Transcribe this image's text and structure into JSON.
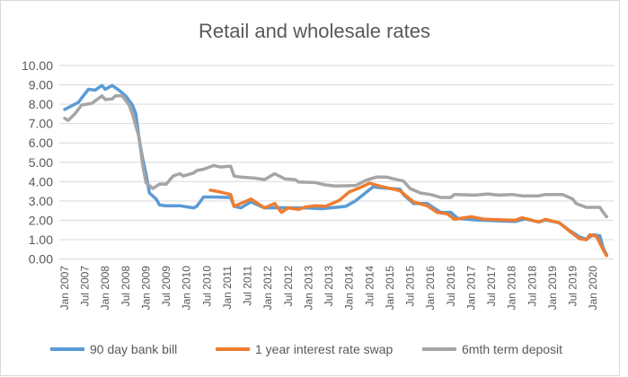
{
  "chart_data": {
    "type": "line",
    "title": "Retail and wholesale rates",
    "xlabel": "",
    "ylabel": "",
    "ylim": [
      0,
      10
    ],
    "y_ticks": [
      "0.00",
      "1.00",
      "2.00",
      "3.00",
      "4.00",
      "5.00",
      "6.00",
      "7.00",
      "8.00",
      "9.00",
      "10.00"
    ],
    "x_range": [
      "2007-01",
      "2020-05"
    ],
    "x_ticks": [
      "Jan 2007",
      "Jul 2007",
      "Jan 2008",
      "Jul 2008",
      "Jan 2009",
      "Jul 2009",
      "Jan 2010",
      "Jul 2010",
      "Jan 2011",
      "Jul 2011",
      "Jan 2012",
      "Jul 2012",
      "Jan 2013",
      "Jul 2013",
      "Jan 2014",
      "Jul 2014",
      "Jan 2015",
      "Jul 2015",
      "Jan 2016",
      "Jul 2016",
      "Jan 2017",
      "Jul 2017",
      "Jan 2018",
      "Jul 2018",
      "Jan 2019",
      "Jul 2019",
      "Jan 2020"
    ],
    "grid": true,
    "legend_position": "bottom",
    "series": [
      {
        "name": "90 day bank bill",
        "color": "#5b9bd5",
        "points": [
          [
            "2007-01",
            7.73
          ],
          [
            "2007-05",
            8.09
          ],
          [
            "2007-08",
            8.77
          ],
          [
            "2007-10",
            8.73
          ],
          [
            "2007-12",
            8.97
          ],
          [
            "2008-01",
            8.77
          ],
          [
            "2008-03",
            8.97
          ],
          [
            "2008-05",
            8.73
          ],
          [
            "2008-07",
            8.43
          ],
          [
            "2008-09",
            7.96
          ],
          [
            "2008-10",
            7.5
          ],
          [
            "2008-11",
            6.2
          ],
          [
            "2008-12",
            5.2
          ],
          [
            "2009-01",
            4.41
          ],
          [
            "2009-02",
            3.41
          ],
          [
            "2009-04",
            3.1
          ],
          [
            "2009-05",
            2.79
          ],
          [
            "2009-07",
            2.75
          ],
          [
            "2009-11",
            2.75
          ],
          [
            "2010-03",
            2.64
          ],
          [
            "2010-04",
            2.72
          ],
          [
            "2010-06",
            3.2
          ],
          [
            "2010-09",
            3.2
          ],
          [
            "2011-02",
            3.18
          ],
          [
            "2011-03",
            2.72
          ],
          [
            "2011-05",
            2.64
          ],
          [
            "2011-08",
            2.95
          ],
          [
            "2011-12",
            2.64
          ],
          [
            "2012-03",
            2.65
          ],
          [
            "2012-12",
            2.64
          ],
          [
            "2013-05",
            2.6
          ],
          [
            "2013-12",
            2.72
          ],
          [
            "2014-03",
            3.02
          ],
          [
            "2014-08",
            3.72
          ],
          [
            "2014-11",
            3.67
          ],
          [
            "2015-04",
            3.61
          ],
          [
            "2015-05",
            3.33
          ],
          [
            "2015-08",
            2.87
          ],
          [
            "2015-12",
            2.87
          ],
          [
            "2016-04",
            2.41
          ],
          [
            "2016-07",
            2.41
          ],
          [
            "2016-09",
            2.1
          ],
          [
            "2017-02",
            2.02
          ],
          [
            "2018-02",
            1.94
          ],
          [
            "2018-05",
            2.07
          ],
          [
            "2018-09",
            1.91
          ],
          [
            "2018-11",
            2.02
          ],
          [
            "2019-03",
            1.87
          ],
          [
            "2019-06",
            1.48
          ],
          [
            "2019-09",
            1.14
          ],
          [
            "2019-11",
            1.02
          ],
          [
            "2020-01",
            1.25
          ],
          [
            "2020-03",
            1.2
          ],
          [
            "2020-04",
            0.56
          ],
          [
            "2020-05",
            0.22
          ]
        ]
      },
      {
        "name": "1 year interest rate swap",
        "color": "#ed7d31",
        "points": [
          [
            "2010-08",
            3.56
          ],
          [
            "2010-11",
            3.46
          ],
          [
            "2011-02",
            3.33
          ],
          [
            "2011-03",
            2.72
          ],
          [
            "2011-05",
            2.87
          ],
          [
            "2011-08",
            3.1
          ],
          [
            "2011-10",
            2.87
          ],
          [
            "2011-12",
            2.64
          ],
          [
            "2012-03",
            2.87
          ],
          [
            "2012-05",
            2.41
          ],
          [
            "2012-07",
            2.64
          ],
          [
            "2012-10",
            2.56
          ],
          [
            "2012-12",
            2.68
          ],
          [
            "2013-03",
            2.75
          ],
          [
            "2013-06",
            2.72
          ],
          [
            "2013-10",
            3.02
          ],
          [
            "2014-01",
            3.46
          ],
          [
            "2014-04",
            3.67
          ],
          [
            "2014-07",
            3.92
          ],
          [
            "2014-10",
            3.77
          ],
          [
            "2015-02",
            3.61
          ],
          [
            "2015-04",
            3.52
          ],
          [
            "2015-08",
            2.95
          ],
          [
            "2015-12",
            2.75
          ],
          [
            "2016-03",
            2.41
          ],
          [
            "2016-06",
            2.33
          ],
          [
            "2016-08",
            2.05
          ],
          [
            "2017-01",
            2.18
          ],
          [
            "2017-05",
            2.05
          ],
          [
            "2018-02",
            2.0
          ],
          [
            "2018-04",
            2.13
          ],
          [
            "2018-09",
            1.91
          ],
          [
            "2018-11",
            2.05
          ],
          [
            "2019-03",
            1.87
          ],
          [
            "2019-06",
            1.45
          ],
          [
            "2019-09",
            1.05
          ],
          [
            "2019-11",
            0.99
          ],
          [
            "2019-12",
            1.25
          ],
          [
            "2020-02",
            1.17
          ],
          [
            "2020-04",
            0.48
          ],
          [
            "2020-05",
            0.17
          ]
        ]
      },
      {
        "name": "6mth term deposit",
        "color": "#a5a5a5",
        "points": [
          [
            "2007-01",
            7.27
          ],
          [
            "2007-02",
            7.16
          ],
          [
            "2007-04",
            7.5
          ],
          [
            "2007-06",
            7.96
          ],
          [
            "2007-09",
            8.04
          ],
          [
            "2007-12",
            8.43
          ],
          [
            "2008-01",
            8.24
          ],
          [
            "2008-03",
            8.27
          ],
          [
            "2008-04",
            8.43
          ],
          [
            "2008-06",
            8.43
          ],
          [
            "2008-08",
            7.96
          ],
          [
            "2008-09",
            7.5
          ],
          [
            "2008-11",
            6.27
          ],
          [
            "2008-12",
            4.88
          ],
          [
            "2009-01",
            3.95
          ],
          [
            "2009-03",
            3.64
          ],
          [
            "2009-05",
            3.87
          ],
          [
            "2009-07",
            3.87
          ],
          [
            "2009-09",
            4.29
          ],
          [
            "2009-11",
            4.41
          ],
          [
            "2009-12",
            4.29
          ],
          [
            "2010-03",
            4.44
          ],
          [
            "2010-04",
            4.57
          ],
          [
            "2010-06",
            4.64
          ],
          [
            "2010-09",
            4.83
          ],
          [
            "2010-11",
            4.75
          ],
          [
            "2011-02",
            4.8
          ],
          [
            "2011-03",
            4.29
          ],
          [
            "2011-05",
            4.23
          ],
          [
            "2011-09",
            4.18
          ],
          [
            "2011-12",
            4.1
          ],
          [
            "2012-03",
            4.41
          ],
          [
            "2012-06",
            4.14
          ],
          [
            "2012-09",
            4.1
          ],
          [
            "2012-10",
            3.98
          ],
          [
            "2013-03",
            3.95
          ],
          [
            "2013-06",
            3.83
          ],
          [
            "2013-09",
            3.77
          ],
          [
            "2014-03",
            3.8
          ],
          [
            "2014-06",
            4.07
          ],
          [
            "2014-09",
            4.23
          ],
          [
            "2014-12",
            4.23
          ],
          [
            "2015-03",
            4.1
          ],
          [
            "2015-05",
            4.03
          ],
          [
            "2015-07",
            3.64
          ],
          [
            "2015-10",
            3.41
          ],
          [
            "2016-01",
            3.33
          ],
          [
            "2016-04",
            3.18
          ],
          [
            "2016-07",
            3.18
          ],
          [
            "2016-08",
            3.33
          ],
          [
            "2017-02",
            3.3
          ],
          [
            "2017-06",
            3.36
          ],
          [
            "2017-09",
            3.3
          ],
          [
            "2018-01",
            3.33
          ],
          [
            "2018-04",
            3.26
          ],
          [
            "2018-09",
            3.26
          ],
          [
            "2018-11",
            3.33
          ],
          [
            "2019-04",
            3.33
          ],
          [
            "2019-07",
            3.1
          ],
          [
            "2019-08",
            2.87
          ],
          [
            "2019-11",
            2.67
          ],
          [
            "2020-03",
            2.67
          ],
          [
            "2020-04",
            2.41
          ],
          [
            "2020-05",
            2.18
          ]
        ]
      }
    ]
  }
}
